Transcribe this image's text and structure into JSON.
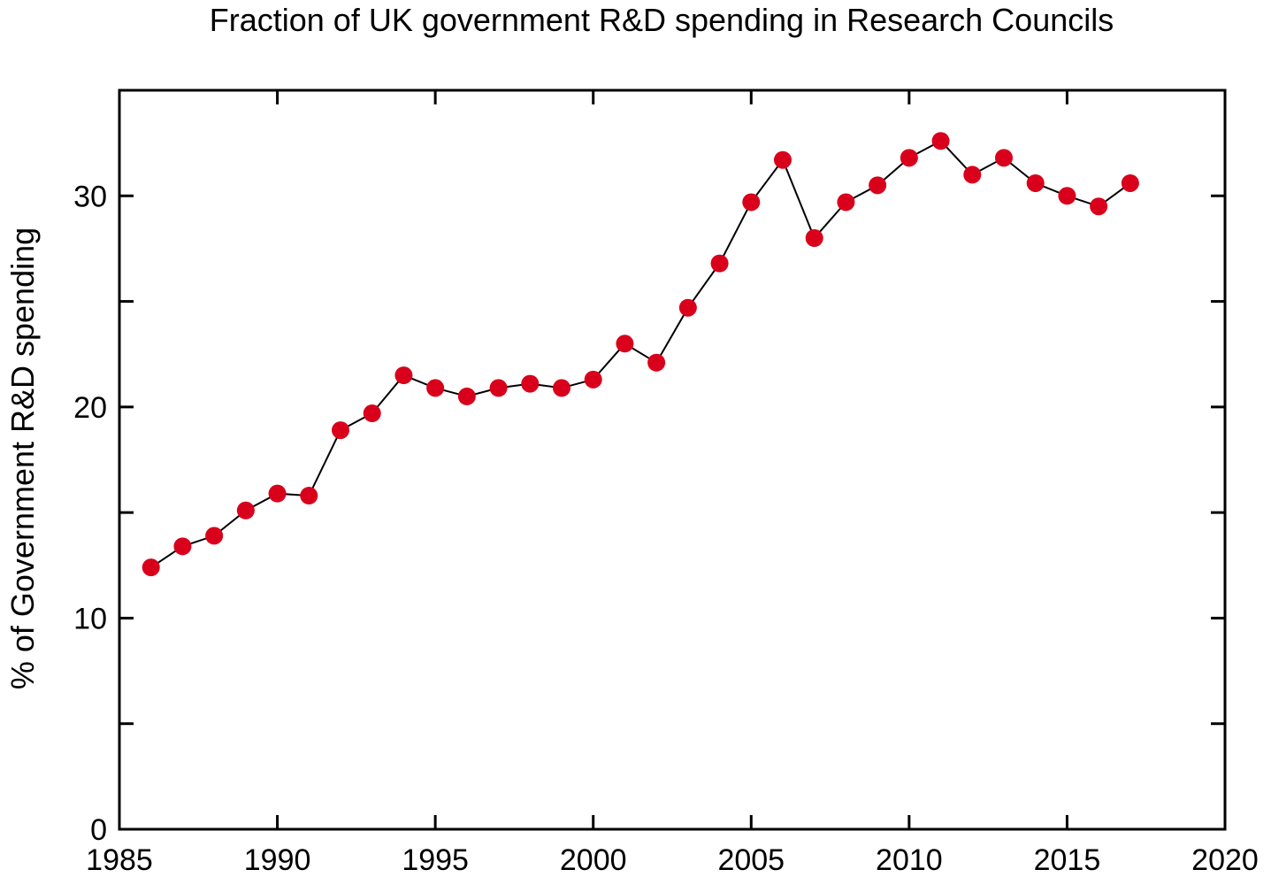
{
  "chart_data": {
    "type": "line",
    "title": "Fraction of UK government R&D spending in Research Councils",
    "xlabel": "",
    "ylabel": "% of Government R&D spending",
    "xlim": [
      1985,
      2020
    ],
    "ylim": [
      0,
      35
    ],
    "x_ticks": [
      1985,
      1990,
      1995,
      2000,
      2005,
      2010,
      2015,
      2020
    ],
    "y_ticks": [
      0,
      5,
      10,
      15,
      20,
      25,
      30,
      35
    ],
    "y_tick_labels": [
      "0",
      "",
      "10",
      "",
      "20",
      "",
      "30",
      ""
    ],
    "grid": false,
    "legend": "none",
    "colors": {
      "marker": "#d9001b",
      "line": "#000000"
    },
    "series": [
      {
        "x": [
          1986,
          1987,
          1988,
          1989,
          1990,
          1991,
          1992,
          1993,
          1994,
          1995,
          1996,
          1997,
          1998,
          1999,
          2000,
          2001,
          2002,
          2003,
          2004,
          2005,
          2006,
          2007,
          2008,
          2009,
          2010,
          2011,
          2012,
          2013,
          2014,
          2015,
          2016,
          2017
        ],
        "values": [
          12.4,
          13.4,
          13.9,
          15.1,
          15.9,
          15.8,
          18.9,
          19.7,
          21.5,
          20.9,
          20.5,
          20.9,
          21.1,
          20.9,
          21.3,
          23.0,
          22.1,
          24.7,
          26.8,
          29.7,
          31.7,
          28.0,
          29.7,
          30.5,
          31.8,
          32.6,
          31.0,
          31.8,
          30.6,
          30.0,
          29.5,
          30.6
        ]
      }
    ]
  }
}
